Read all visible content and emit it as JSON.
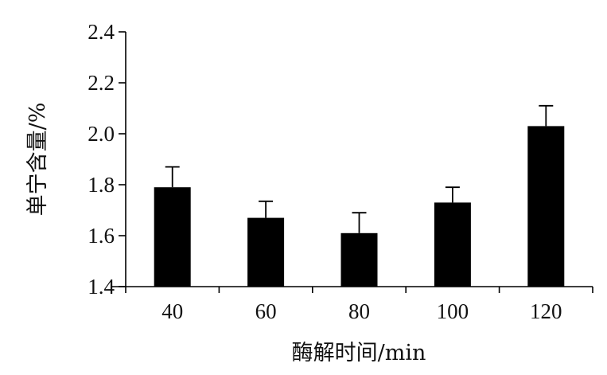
{
  "chart_data": {
    "type": "bar",
    "title": "",
    "xlabel": "酶解时间/min",
    "ylabel": "单宁含量/%",
    "categories": [
      "40",
      "60",
      "80",
      "100",
      "120"
    ],
    "values": [
      1.79,
      1.67,
      1.61,
      1.73,
      2.03
    ],
    "error_upper": [
      0.08,
      0.065,
      0.08,
      0.06,
      0.08
    ],
    "ylim": [
      1.4,
      2.4
    ],
    "yticks": [
      "1.4",
      "1.6",
      "1.8",
      "2.0",
      "2.2",
      "2.4"
    ],
    "grid": false,
    "bar_color": "#000000"
  }
}
